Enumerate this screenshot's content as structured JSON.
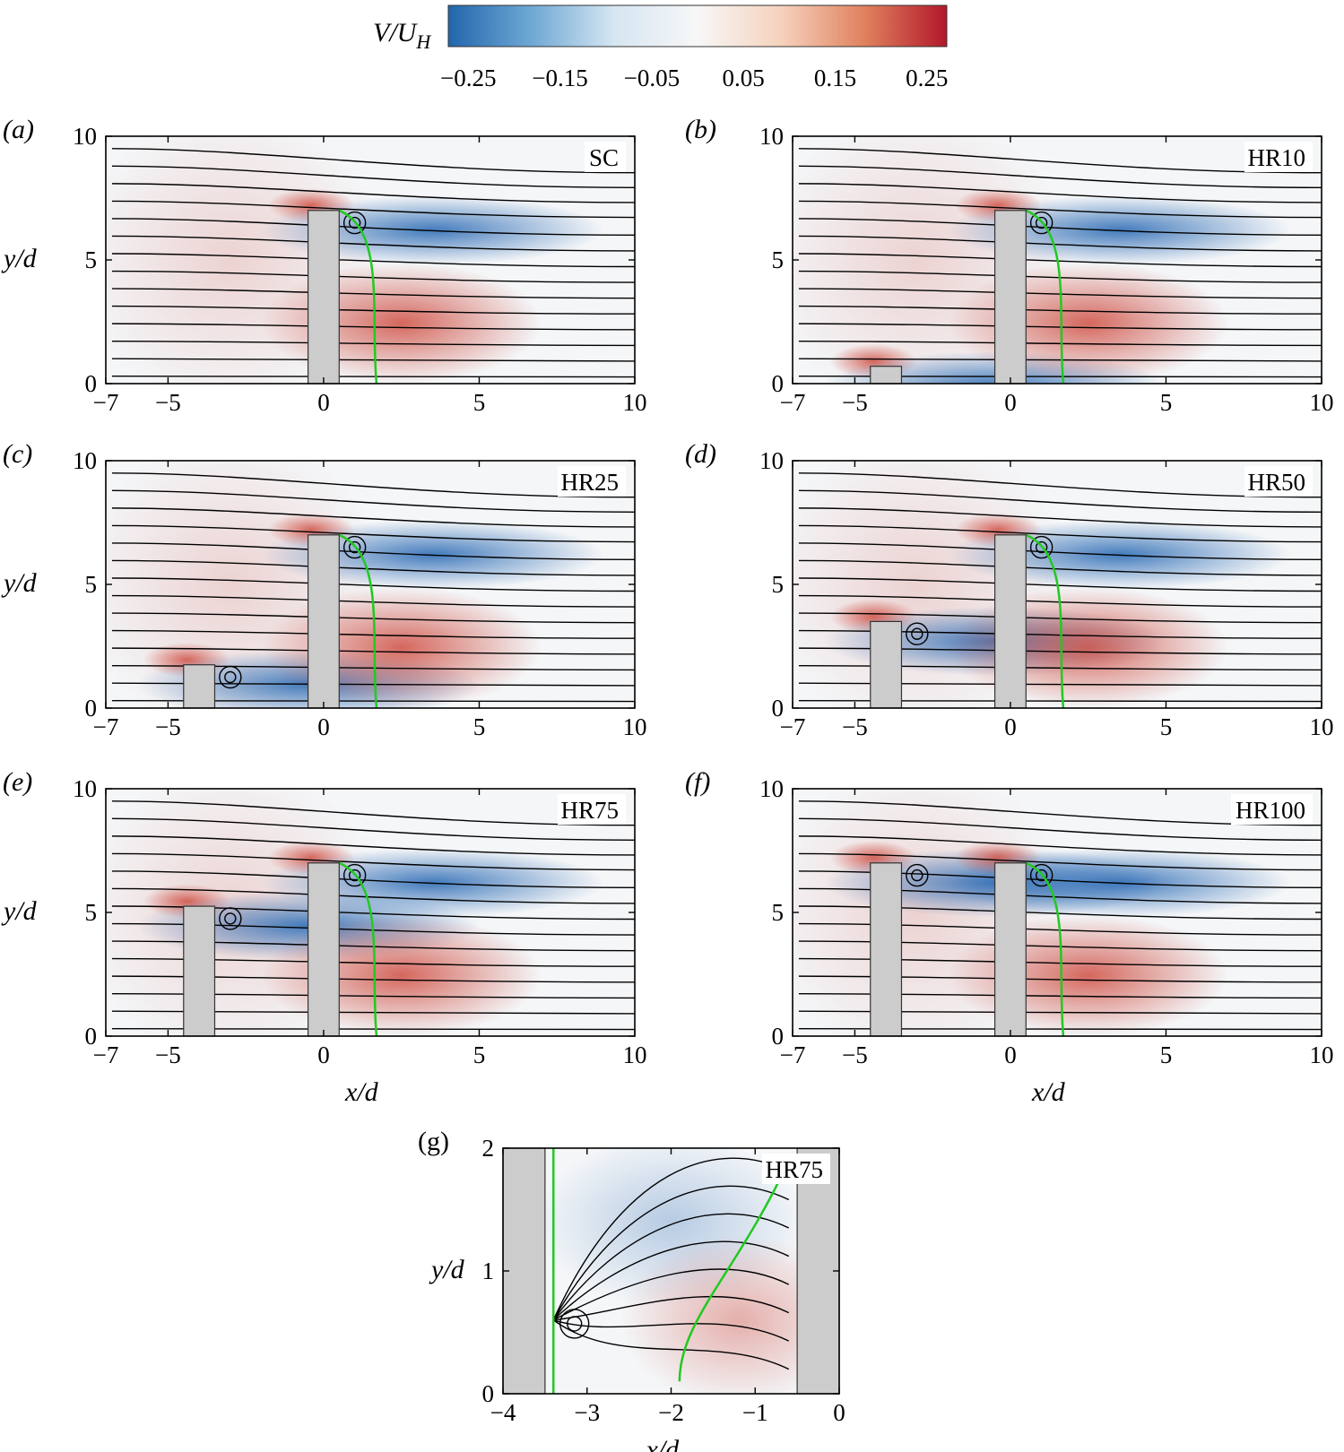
{
  "colorbar": {
    "label": "V/U",
    "label_sub": "H",
    "ticks": [
      "−0.25",
      "−0.15",
      "−0.05",
      "0.05",
      "0.15",
      "0.25"
    ],
    "range": [
      -0.25,
      0.25
    ],
    "colors": [
      "#2166ac",
      "#6fa8d4",
      "#d6e6f2",
      "#f7f7f7",
      "#f6d2bd",
      "#e0825f",
      "#b2182b"
    ]
  },
  "colors": {
    "building": "#cccccc",
    "separatrix": "#22c922",
    "streamline": "#000000",
    "positive": "#cf4e42",
    "negative": "#2f6db5"
  },
  "chart_data": [
    {
      "type": "heatmap",
      "panel": "(a)",
      "case": "SC",
      "xlabel": "",
      "ylabel": "y/d",
      "xlim": [
        -7,
        10
      ],
      "ylim": [
        0,
        10
      ],
      "xticks": [
        "−7",
        "−5",
        "0",
        "5",
        "10"
      ],
      "yticks": [
        "0",
        "5",
        "10"
      ],
      "buildings": [
        {
          "x0": -0.5,
          "x1": 0.5,
          "height": 7
        }
      ],
      "grid": false
    },
    {
      "type": "heatmap",
      "panel": "(b)",
      "case": "HR10",
      "xlabel": "",
      "ylabel": "",
      "xlim": [
        -7,
        10
      ],
      "ylim": [
        0,
        10
      ],
      "xticks": [
        "−7",
        "−5",
        "0",
        "5",
        "10"
      ],
      "yticks": [
        "0",
        "5",
        "10"
      ],
      "buildings": [
        {
          "x0": -4.5,
          "x1": -3.5,
          "height": 0.7
        },
        {
          "x0": -0.5,
          "x1": 0.5,
          "height": 7
        }
      ],
      "grid": false
    },
    {
      "type": "heatmap",
      "panel": "(c)",
      "case": "HR25",
      "xlabel": "",
      "ylabel": "y/d",
      "xlim": [
        -7,
        10
      ],
      "ylim": [
        0,
        10
      ],
      "xticks": [
        "−7",
        "−5",
        "0",
        "5",
        "10"
      ],
      "yticks": [
        "0",
        "5",
        "10"
      ],
      "buildings": [
        {
          "x0": -4.5,
          "x1": -3.5,
          "height": 1.75
        },
        {
          "x0": -0.5,
          "x1": 0.5,
          "height": 7
        }
      ],
      "grid": false
    },
    {
      "type": "heatmap",
      "panel": "(d)",
      "case": "HR50",
      "xlabel": "",
      "ylabel": "",
      "xlim": [
        -7,
        10
      ],
      "ylim": [
        0,
        10
      ],
      "xticks": [
        "−7",
        "−5",
        "0",
        "5",
        "10"
      ],
      "yticks": [
        "0",
        "5",
        "10"
      ],
      "buildings": [
        {
          "x0": -4.5,
          "x1": -3.5,
          "height": 3.5
        },
        {
          "x0": -0.5,
          "x1": 0.5,
          "height": 7
        }
      ],
      "grid": false
    },
    {
      "type": "heatmap",
      "panel": "(e)",
      "case": "HR75",
      "xlabel": "x/d",
      "ylabel": "y/d",
      "xlim": [
        -7,
        10
      ],
      "ylim": [
        0,
        10
      ],
      "xticks": [
        "−7",
        "−5",
        "0",
        "5",
        "10"
      ],
      "yticks": [
        "0",
        "5",
        "10"
      ],
      "buildings": [
        {
          "x0": -4.5,
          "x1": -3.5,
          "height": 5.25
        },
        {
          "x0": -0.5,
          "x1": 0.5,
          "height": 7
        }
      ],
      "grid": false
    },
    {
      "type": "heatmap",
      "panel": "(f)",
      "case": "HR100",
      "xlabel": "x/d",
      "ylabel": "",
      "xlim": [
        -7,
        10
      ],
      "ylim": [
        0,
        10
      ],
      "xticks": [
        "−7",
        "−5",
        "0",
        "5",
        "10"
      ],
      "yticks": [
        "0",
        "5",
        "10"
      ],
      "buildings": [
        {
          "x0": -4.5,
          "x1": -3.5,
          "height": 7
        },
        {
          "x0": -0.5,
          "x1": 0.5,
          "height": 7
        }
      ],
      "grid": false
    },
    {
      "type": "heatmap",
      "panel": "(g)",
      "case": "HR75",
      "xlabel": "x/d",
      "ylabel": "y/d",
      "xlim": [
        -4,
        0
      ],
      "ylim": [
        0,
        2
      ],
      "xticks": [
        "−4",
        "−3",
        "−2",
        "−1",
        "0"
      ],
      "yticks": [
        "0",
        "1",
        "2"
      ],
      "buildings": [
        {
          "x0": -4,
          "x1": -3.5,
          "height": 2
        },
        {
          "x0": -0.5,
          "x1": 0,
          "height": 2
        }
      ],
      "grid": false
    }
  ]
}
